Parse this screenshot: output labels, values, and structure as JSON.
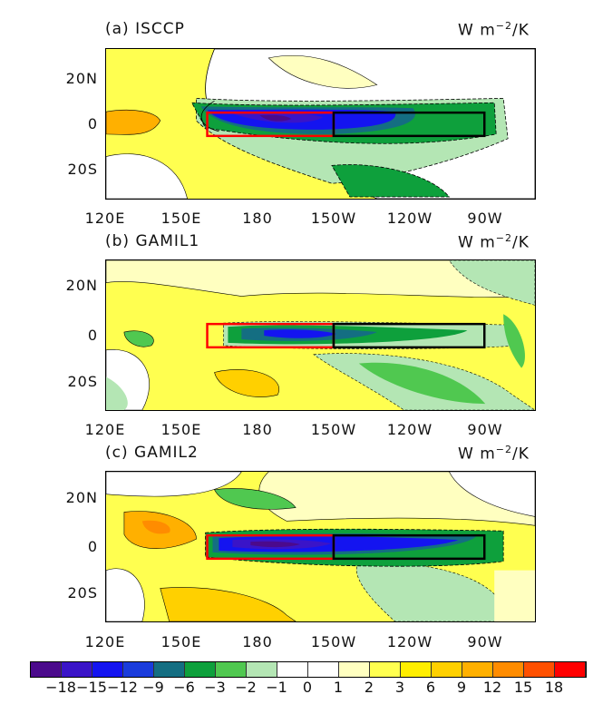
{
  "units": {
    "base": "W m",
    "exp": "−2",
    "suffix": "/K"
  },
  "panels": [
    {
      "label": "(a) ISCCP"
    },
    {
      "label": "(b) GAMIL1"
    },
    {
      "label": "(c) GAMIL2"
    }
  ],
  "lat_ticks": [
    "20N",
    "0",
    "20S"
  ],
  "lon_ticks": [
    "120E",
    "150E",
    "180",
    "150W",
    "120W",
    "90W"
  ],
  "boxes": {
    "red": {
      "lon": [
        "160E",
        "150W"
      ],
      "lat": [
        "5N",
        "5S"
      ],
      "color": "#ff0000"
    },
    "black": {
      "lon": [
        "150W",
        "90W"
      ],
      "lat": [
        "5N",
        "5S"
      ],
      "color": "#000000"
    }
  },
  "colorbar": {
    "colors": [
      "#4b0a8c",
      "#3a14c8",
      "#1414f0",
      "#1a3cdc",
      "#146e82",
      "#0ea03c",
      "#50c850",
      "#b4e6b4",
      "#ffffff",
      "#ffffff",
      "#ffffc0",
      "#ffff50",
      "#ffee00",
      "#ffd000",
      "#ffb000",
      "#ff8c00",
      "#ff5000",
      "#ff0000"
    ],
    "labels": [
      "−18",
      "−15",
      "−12",
      "−9",
      "−6",
      "−3",
      "−2",
      "−1",
      "0",
      "1",
      "2",
      "3",
      "6",
      "9",
      "12",
      "15",
      "18"
    ]
  }
}
